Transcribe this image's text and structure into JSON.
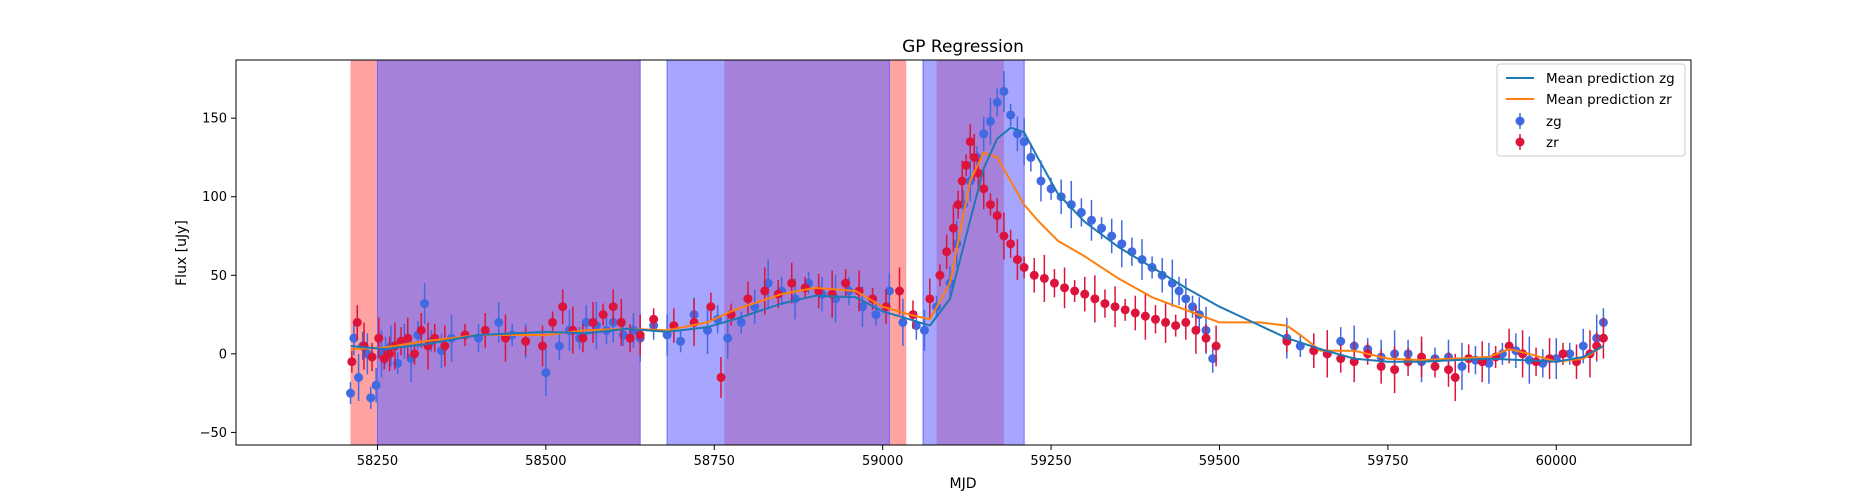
{
  "chart_data": {
    "type": "scatter",
    "title": "GP Regression",
    "xlabel": "MJD",
    "ylabel": "Flux [uJy]",
    "xlim": [
      58040,
      60200
    ],
    "ylim": [
      -58,
      187
    ],
    "xticks": [
      58250,
      58500,
      58750,
      59000,
      59250,
      59500,
      59750,
      60000
    ],
    "yticks": [
      -50,
      0,
      50,
      100,
      150
    ],
    "grid": false,
    "legend_position": "top-right",
    "legend": [
      "Mean prediction zg",
      "Mean prediction zr",
      "zg",
      "zr"
    ],
    "colors": {
      "zg_line": "#1f77b4",
      "zr_line": "#ff7f0e",
      "zg_points": "#4169e1",
      "zr_points": "#dc143c",
      "zg_band": "#6a6aff",
      "zr_band": "#ff6464"
    },
    "shaded_regions": {
      "zr": [
        [
          58210,
          58640
        ],
        [
          58765,
          59035
        ],
        [
          59080,
          59180
        ]
      ],
      "zg": [
        [
          58250,
          58640
        ],
        [
          58680,
          59010
        ],
        [
          59060,
          59210
        ]
      ]
    },
    "mean_prediction": {
      "zg": {
        "x": [
          58210,
          58260,
          58320,
          58400,
          58500,
          58560,
          58620,
          58680,
          58740,
          58780,
          58850,
          58900,
          58960,
          59000,
          59040,
          59070,
          59100,
          59130,
          59150,
          59170,
          59190,
          59210,
          59230,
          59260,
          59300,
          59350,
          59400,
          59450,
          59500,
          59550,
          59600,
          59650,
          59700,
          59750,
          59800,
          59850,
          59900,
          59950,
          60000,
          60040,
          60070
        ],
        "y": [
          5,
          3,
          6,
          12,
          14,
          13,
          16,
          14,
          17,
          22,
          32,
          37,
          36,
          27,
          22,
          18,
          35,
          85,
          118,
          137,
          144,
          141,
          125,
          102,
          84,
          68,
          55,
          42,
          30,
          20,
          10,
          3,
          -3,
          -5,
          -5,
          -4,
          -3,
          -4,
          -5,
          -2,
          5
        ]
      },
      "zr": {
        "x": [
          58210,
          58260,
          58320,
          58400,
          58500,
          58560,
          58620,
          58680,
          58740,
          58780,
          58850,
          58900,
          58960,
          59000,
          59040,
          59070,
          59100,
          59130,
          59150,
          59170,
          59190,
          59210,
          59230,
          59260,
          59300,
          59350,
          59400,
          59450,
          59500,
          59560,
          59600,
          59620,
          59650,
          59700,
          59750,
          59800,
          59850,
          59900,
          59930,
          59960,
          60000,
          60040,
          60070
        ],
        "y": [
          3,
          4,
          8,
          12,
          12,
          15,
          16,
          15,
          20,
          28,
          38,
          42,
          40,
          30,
          25,
          22,
          45,
          110,
          128,
          125,
          110,
          95,
          85,
          72,
          62,
          48,
          36,
          28,
          20,
          20,
          18,
          12,
          2,
          2,
          -3,
          -4,
          -3,
          -2,
          3,
          0,
          -5,
          -3,
          5
        ]
      }
    },
    "observations": {
      "zg": {
        "x": [
          58210,
          58215,
          58222,
          58228,
          58235,
          58240,
          58248,
          58256,
          58262,
          58270,
          58280,
          58290,
          58300,
          58310,
          58320,
          58330,
          58345,
          58360,
          58400,
          58430,
          58450,
          58470,
          58500,
          58520,
          58535,
          58550,
          58560,
          58575,
          58590,
          58600,
          58615,
          58630,
          58640,
          58660,
          58680,
          58700,
          58720,
          58740,
          58755,
          58770,
          58790,
          58810,
          58830,
          58850,
          58870,
          58890,
          58910,
          58930,
          58950,
          58970,
          58990,
          59010,
          59030,
          59050,
          59062,
          59080,
          59100,
          59110,
          59120,
          59130,
          59140,
          59150,
          59160,
          59170,
          59180,
          59190,
          59200,
          59210,
          59220,
          59235,
          59250,
          59265,
          59280,
          59295,
          59310,
          59325,
          59340,
          59355,
          59370,
          59385,
          59400,
          59415,
          59430,
          59440,
          59450,
          59460,
          59470,
          59480,
          59490,
          59600,
          59620,
          59640,
          59660,
          59680,
          59700,
          59720,
          59740,
          59760,
          59780,
          59800,
          59820,
          59840,
          59860,
          59880,
          59900,
          59920,
          59940,
          59960,
          59980,
          60000,
          60020,
          60040,
          60060,
          60070
        ],
        "y": [
          -25,
          10,
          -15,
          5,
          0,
          -28,
          -20,
          0,
          2,
          5,
          -6,
          8,
          -3,
          12,
          32,
          8,
          2,
          10,
          10,
          20,
          12,
          8,
          -12,
          5,
          15,
          10,
          20,
          18,
          15,
          20,
          12,
          15,
          10,
          18,
          12,
          8,
          25,
          15,
          22,
          10,
          20,
          30,
          45,
          40,
          35,
          45,
          38,
          35,
          40,
          30,
          25,
          40,
          20,
          18,
          15,
          30,
          45,
          70,
          95,
          110,
          125,
          140,
          148,
          160,
          167,
          152,
          140,
          135,
          125,
          110,
          105,
          100,
          95,
          90,
          85,
          80,
          75,
          70,
          65,
          60,
          55,
          50,
          45,
          40,
          35,
          30,
          25,
          15,
          -3,
          10,
          5,
          2,
          0,
          8,
          5,
          3,
          -2,
          0,
          0,
          -5,
          -3,
          -2,
          -8,
          -4,
          -6,
          0,
          2,
          -4,
          -6,
          -3,
          0,
          5,
          10,
          20
        ]
      },
      "zr": {
        "x": [
          58212,
          58220,
          58230,
          58242,
          58252,
          58260,
          58268,
          58276,
          58285,
          58295,
          58305,
          58315,
          58325,
          58335,
          58350,
          58380,
          58410,
          58440,
          58470,
          58495,
          58510,
          58525,
          58540,
          58555,
          58570,
          58585,
          58600,
          58612,
          58625,
          58640,
          58660,
          58690,
          58720,
          58745,
          58760,
          58775,
          58800,
          58825,
          58845,
          58865,
          58885,
          58905,
          58925,
          58945,
          58965,
          58985,
          59005,
          59025,
          59045,
          59070,
          59085,
          59095,
          59105,
          59112,
          59118,
          59124,
          59130,
          59136,
          59142,
          59150,
          59160,
          59170,
          59180,
          59190,
          59200,
          59210,
          59225,
          59240,
          59255,
          59270,
          59285,
          59300,
          59315,
          59330,
          59345,
          59360,
          59375,
          59390,
          59405,
          59420,
          59435,
          59450,
          59465,
          59480,
          59495,
          59600,
          59640,
          59660,
          59680,
          59700,
          59720,
          59740,
          59760,
          59780,
          59800,
          59820,
          59840,
          59850,
          59870,
          59890,
          59910,
          59930,
          59950,
          59970,
          59990,
          60010,
          60030,
          60050,
          60060,
          60070
        ],
        "y": [
          -5,
          20,
          5,
          -2,
          10,
          -3,
          0,
          5,
          8,
          10,
          0,
          15,
          5,
          10,
          5,
          12,
          15,
          10,
          8,
          5,
          20,
          30,
          15,
          10,
          20,
          25,
          30,
          20,
          10,
          12,
          22,
          18,
          20,
          30,
          -15,
          25,
          35,
          40,
          38,
          45,
          42,
          40,
          38,
          45,
          40,
          35,
          30,
          40,
          25,
          35,
          50,
          65,
          80,
          95,
          110,
          120,
          135,
          125,
          115,
          105,
          95,
          88,
          75,
          70,
          60,
          55,
          50,
          48,
          45,
          42,
          40,
          38,
          35,
          32,
          30,
          28,
          26,
          24,
          22,
          20,
          18,
          20,
          15,
          10,
          5,
          8,
          2,
          0,
          -3,
          -5,
          0,
          -8,
          -10,
          -5,
          -2,
          -8,
          -10,
          -15,
          -3,
          -5,
          -2,
          5,
          0,
          -5,
          -3,
          0,
          -5,
          0,
          5,
          10
        ]
      }
    }
  }
}
